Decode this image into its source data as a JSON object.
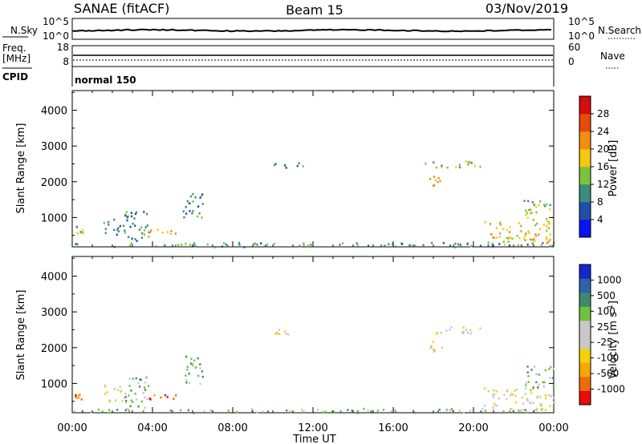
{
  "header": {
    "station": "SANAE (fitACF)",
    "beam": "Beam 15",
    "date": "03/Nov/2019"
  },
  "nsky_panel": {
    "left_label": "N.Sky",
    "left_ticks": [
      "10^5",
      "10^0"
    ],
    "right_label": "N.Search",
    "right_ticks": [
      "10^5",
      "10^0"
    ]
  },
  "freq_panel": {
    "left_label_1": "Freq.",
    "left_label_2": "[MHz]",
    "left_ticks": [
      "18",
      "8"
    ],
    "right_label": "Nave",
    "right_ticks": [
      "60",
      "0"
    ]
  },
  "cpid": {
    "label": "CPID",
    "value": "normal 150"
  },
  "time_axis": {
    "label": "Time UT",
    "ticks": [
      "00:00",
      "04:00",
      "08:00",
      "12:00",
      "16:00",
      "20:00",
      "00:00"
    ]
  },
  "colors": {
    "power_scale": [
      "#0a14ee",
      "#1f4fa8",
      "#3a8c7c",
      "#7cc23c",
      "#f5c813",
      "#f28e12",
      "#e84a0c",
      "#d40d0d"
    ],
    "velocity_scale": [
      "#e80c0c",
      "#f06c0a",
      "#f5a70a",
      "#f2d10a",
      "#c8c8c8",
      "#c8c8c8",
      "#6fc23a",
      "#3f8a6e",
      "#2f63a8",
      "#1427c8"
    ],
    "ground_scatter": "#bebebe"
  },
  "chart_data": [
    {
      "type": "heatmap",
      "title": "",
      "xlabel": "Time UT",
      "ylabel": "Slant Range [km]",
      "xlim": [
        0,
        24
      ],
      "ylim": [
        180,
        4550
      ],
      "yticks": [
        1000,
        2000,
        3000,
        4000
      ],
      "colorbar": {
        "label": "Power [dB]",
        "ticks": [
          "4",
          "8",
          "12",
          "16",
          "20",
          "24",
          "28"
        ],
        "range": [
          0,
          32
        ]
      },
      "scatter_regions": [
        {
          "t_start": 0.0,
          "t_end": 24.0,
          "r_start": 200,
          "r_end": 320,
          "level": 2
        },
        {
          "t_start": 0.1,
          "t_end": 0.5,
          "r_start": 550,
          "r_end": 800,
          "level": 3
        },
        {
          "t_start": 1.5,
          "t_end": 2.6,
          "r_start": 500,
          "r_end": 1000,
          "level": 2
        },
        {
          "t_start": 2.6,
          "t_end": 3.8,
          "r_start": 300,
          "r_end": 1200,
          "level": 2
        },
        {
          "t_start": 3.8,
          "t_end": 5.2,
          "r_start": 550,
          "r_end": 700,
          "level": 4
        },
        {
          "t_start": 5.5,
          "t_end": 6.5,
          "r_start": 1000,
          "r_end": 1800,
          "level": 2
        },
        {
          "t_start": 10.0,
          "t_end": 11.5,
          "r_start": 2400,
          "r_end": 2550,
          "level": 2
        },
        {
          "t_start": 17.5,
          "t_end": 20.3,
          "r_start": 2400,
          "r_end": 2600,
          "level": 3
        },
        {
          "t_start": 17.8,
          "t_end": 18.4,
          "r_start": 1900,
          "r_end": 2200,
          "level": 5
        },
        {
          "t_start": 20.5,
          "t_end": 24.0,
          "r_start": 250,
          "r_end": 900,
          "level": 4
        },
        {
          "t_start": 22.5,
          "t_end": 24.0,
          "r_start": 900,
          "r_end": 1500,
          "level": 3
        }
      ]
    },
    {
      "type": "heatmap",
      "title": "",
      "xlabel": "Time UT",
      "ylabel": "Slant Range [km]",
      "xlim": [
        0,
        24
      ],
      "ylim": [
        180,
        4550
      ],
      "yticks": [
        1000,
        2000,
        3000,
        4000
      ],
      "colorbar": {
        "label": "Velocity [m s^-1]",
        "ticks": [
          "-1000",
          "-500",
          "-100",
          "-25",
          "25",
          "100",
          "500",
          "1000"
        ],
        "range": [
          -1250,
          1250
        ]
      },
      "scatter_regions": [
        {
          "t_start": 0.0,
          "t_end": 24.0,
          "r_start": 200,
          "r_end": 320,
          "level": 6
        },
        {
          "t_start": 0.1,
          "t_end": 0.5,
          "r_start": 550,
          "r_end": 800,
          "level": 1
        },
        {
          "t_start": 1.5,
          "t_end": 2.6,
          "r_start": 500,
          "r_end": 1000,
          "level": 4
        },
        {
          "t_start": 2.6,
          "t_end": 3.8,
          "r_start": 300,
          "r_end": 1200,
          "level": 6
        },
        {
          "t_start": 3.8,
          "t_end": 5.2,
          "r_start": 550,
          "r_end": 700,
          "level": 1
        },
        {
          "t_start": 5.5,
          "t_end": 6.5,
          "r_start": 1000,
          "r_end": 1800,
          "level": 6
        },
        {
          "t_start": 10.0,
          "t_end": 11.5,
          "r_start": 2400,
          "r_end": 2550,
          "level": 4
        },
        {
          "t_start": 17.5,
          "t_end": 20.3,
          "r_start": 2400,
          "r_end": 2600,
          "level": 4
        },
        {
          "t_start": 17.8,
          "t_end": 18.4,
          "r_start": 1900,
          "r_end": 2200,
          "level": 3
        },
        {
          "t_start": 20.5,
          "t_end": 24.0,
          "r_start": 250,
          "r_end": 900,
          "level": 4
        },
        {
          "t_start": 22.5,
          "t_end": 24.0,
          "r_start": 900,
          "r_end": 1500,
          "level": 6
        }
      ]
    }
  ]
}
